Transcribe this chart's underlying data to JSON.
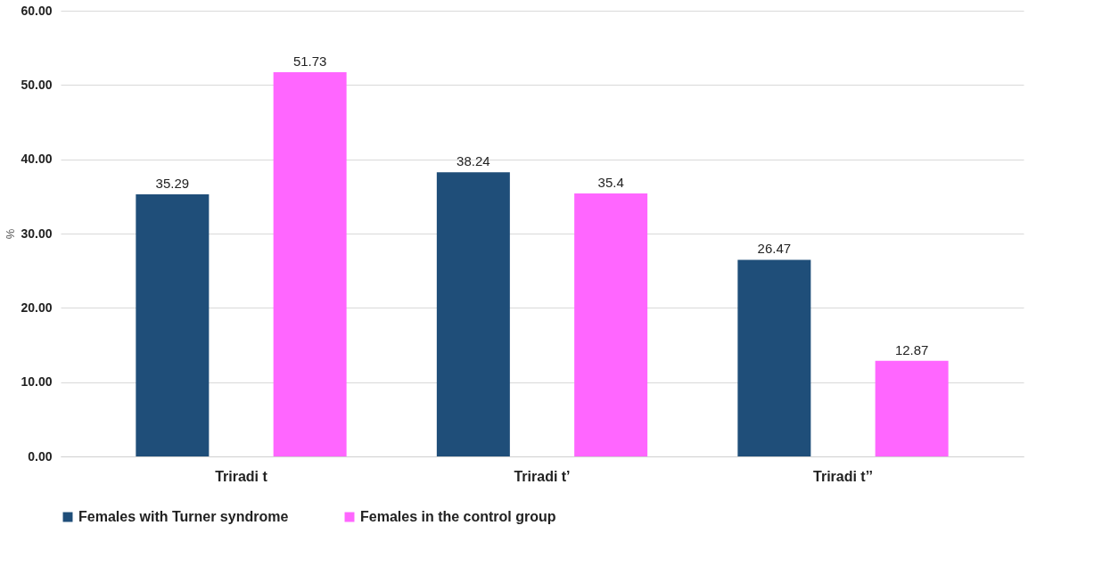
{
  "chart_data": {
    "type": "bar",
    "ylabel": "%",
    "categories": [
      "Triradi t",
      "Triradi t’",
      "Triradi t’’"
    ],
    "series": [
      {
        "name": "Females with Turner syndrome",
        "color": "#1f4e79",
        "values": [
          35.29,
          38.24,
          26.47
        ]
      },
      {
        "name": "Females in the control group",
        "color": "#ff66ff",
        "values": [
          51.73,
          35.4,
          12.87
        ]
      }
    ],
    "ylim": [
      0,
      60
    ],
    "yticks": [
      {
        "value": 0,
        "label": "0.00"
      },
      {
        "value": 10,
        "label": "10.00"
      },
      {
        "value": 20,
        "label": "20.00"
      },
      {
        "value": 30,
        "label": "30.00"
      },
      {
        "value": 40,
        "label": "40.00"
      },
      {
        "value": 50,
        "label": "50.00"
      },
      {
        "value": 60,
        "label": "60.00"
      }
    ],
    "grid": "y",
    "legend": "bottom",
    "data_labels": true
  }
}
